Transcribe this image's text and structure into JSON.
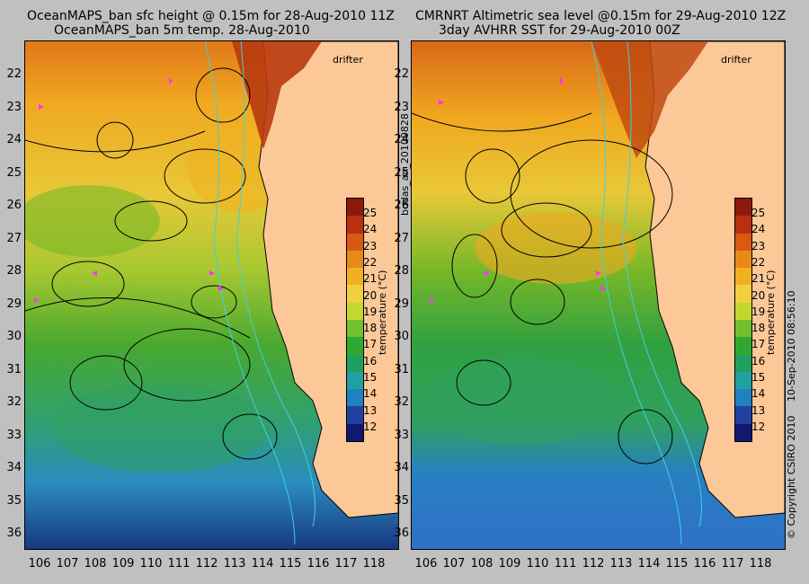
{
  "left_panel": {
    "title_line1": "OceanMAPS_ban sfc height @ 0.15m for 28-Aug-2010 11Z",
    "title_line2": "OceanMAPS_ban 5m temp. 28-Aug-2010",
    "drifter_label": "drifter"
  },
  "right_panel": {
    "title_line1": "CMRNRT Altimetric sea level  @0.15m  for 29-Aug-2010 12Z",
    "title_line2": "3day AVHRR SST for 29-Aug-2010 00Z",
    "drifter_label": "drifter"
  },
  "latitude_labels": [
    "22",
    "23",
    "24",
    "25",
    "26",
    "27",
    "28",
    "29",
    "30",
    "31",
    "32",
    "33",
    "34",
    "35",
    "36"
  ],
  "longitude_labels": [
    "106",
    "107",
    "108",
    "109",
    "110",
    "111",
    "112",
    "113",
    "114",
    "115",
    "116",
    "117",
    "118"
  ],
  "colorbar": {
    "labels": [
      "25",
      "24",
      "23",
      "22",
      "21",
      "20",
      "19",
      "18",
      "17",
      "16",
      "15",
      "14",
      "13",
      "12"
    ],
    "title": "temperature (°C)",
    "colors": [
      "#8b1a0a",
      "#b83010",
      "#d85a10",
      "#e88a1a",
      "#f0b020",
      "#f0d040",
      "#c0d830",
      "#70c030",
      "#30a830",
      "#20a060",
      "#20a0a0",
      "#2080c0",
      "#2040a0",
      "#101870"
    ]
  },
  "side_labels": {
    "run_id": "bodas_an_20100828",
    "copyright": "© Copyright CSIRO 2010",
    "timestamp": "10-Sep-2010 08:56:10"
  }
}
